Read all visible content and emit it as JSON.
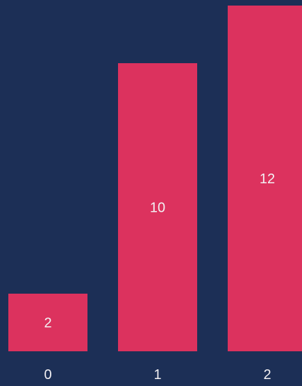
{
  "chart_data": {
    "type": "bar",
    "categories": [
      "0",
      "1",
      "2"
    ],
    "values": [
      2,
      10,
      12
    ],
    "ylim": [
      0,
      12
    ],
    "grid": false,
    "data_labels": [
      "2",
      "10",
      "12"
    ]
  },
  "colors": {
    "background": "#1c2f56",
    "bar": "#dc325e",
    "text": "#f3f1f4"
  }
}
